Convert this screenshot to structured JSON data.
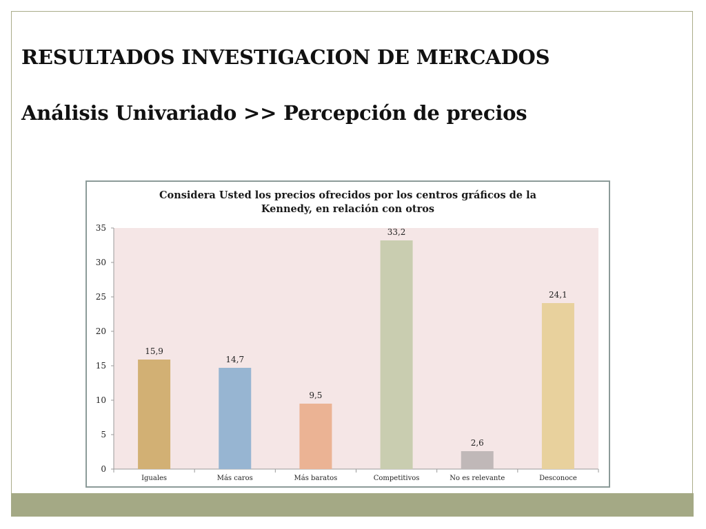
{
  "slide": {
    "title": "RESULTADOS INVESTIGACION DE MERCADOS",
    "subtitle": "Análisis Univariado >> Percepción de precios"
  },
  "colors": {
    "frame_border": "#a9ab88",
    "bottom_bar": "#a4a985",
    "plot_background": "#f5e6e6"
  },
  "chart_data": {
    "type": "bar",
    "title_lines": [
      "Considera Usted los precios ofrecidos por los centros gráficos de la",
      "Kennedy, en relación con otros"
    ],
    "categories": [
      "Iguales",
      "Más caros",
      "Más baratos",
      "Competitivos",
      "No es relevante",
      "Desconoce"
    ],
    "values": [
      15.9,
      14.7,
      9.5,
      33.2,
      2.6,
      24.1
    ],
    "value_labels": [
      "15,9",
      "14,7",
      "9,5",
      "33,2",
      "2,6",
      "24,1"
    ],
    "bar_colors": [
      "#d2b074",
      "#97b5d2",
      "#ebb394",
      "#c9cdb0",
      "#c0b8b8",
      "#e8d19d"
    ],
    "ylim": [
      0,
      35
    ],
    "yticks": [
      0,
      5,
      10,
      15,
      20,
      25,
      30,
      35
    ],
    "xlabel": "",
    "ylabel": "",
    "legend": false,
    "grid": false
  }
}
